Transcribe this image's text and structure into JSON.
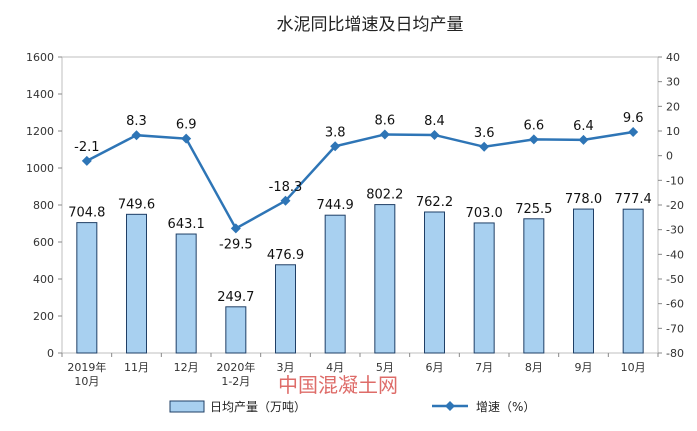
{
  "chart_data": {
    "type": "bar",
    "title": "水泥同比增速及日均产量",
    "categories": [
      "2019年\n10月",
      "11月",
      "12月",
      "2020年\n1-2月",
      "3月",
      "4月",
      "5月",
      "6月",
      "7月",
      "8月",
      "9月",
      "10月"
    ],
    "series": [
      {
        "name": "日均产量（万吨）",
        "type": "bar",
        "axis": "left",
        "color": "#a8d0f0",
        "values": [
          704.8,
          749.6,
          643.1,
          249.7,
          476.9,
          744.9,
          802.2,
          762.2,
          703.0,
          725.5,
          778.0,
          777.4
        ],
        "labels": [
          "704.8",
          "749.6",
          "643.1",
          "249.7",
          "476.9",
          "744.9",
          "802.2",
          "762.2",
          "703.0",
          "725.5",
          "778.0",
          "777.4"
        ]
      },
      {
        "name": "增速（%）",
        "type": "line",
        "axis": "right",
        "color": "#2e75b6",
        "values": [
          -2.1,
          8.3,
          6.9,
          -29.5,
          -18.3,
          3.8,
          8.6,
          8.4,
          3.6,
          6.6,
          6.4,
          9.6
        ],
        "labels": [
          "-2.1",
          "8.3",
          "6.9",
          "-29.5",
          "-18.3",
          "3.8",
          "8.6",
          "8.4",
          "3.6",
          "6.6",
          "6.4",
          "9.6"
        ]
      }
    ],
    "y_left": {
      "min": 0,
      "max": 1600,
      "step": 200,
      "ticks": [
        "0",
        "200",
        "400",
        "600",
        "800",
        "1000",
        "1200",
        "1400",
        "1600"
      ]
    },
    "y_right": {
      "min": -80,
      "max": 40,
      "step": 10,
      "ticks": [
        "-80",
        "-70",
        "-60",
        "-50",
        "-40",
        "-30",
        "-20",
        "-10",
        "0",
        "10",
        "20",
        "30",
        "40"
      ]
    },
    "grid": false,
    "legend": "bottom"
  },
  "watermark": "中国混凝土网"
}
